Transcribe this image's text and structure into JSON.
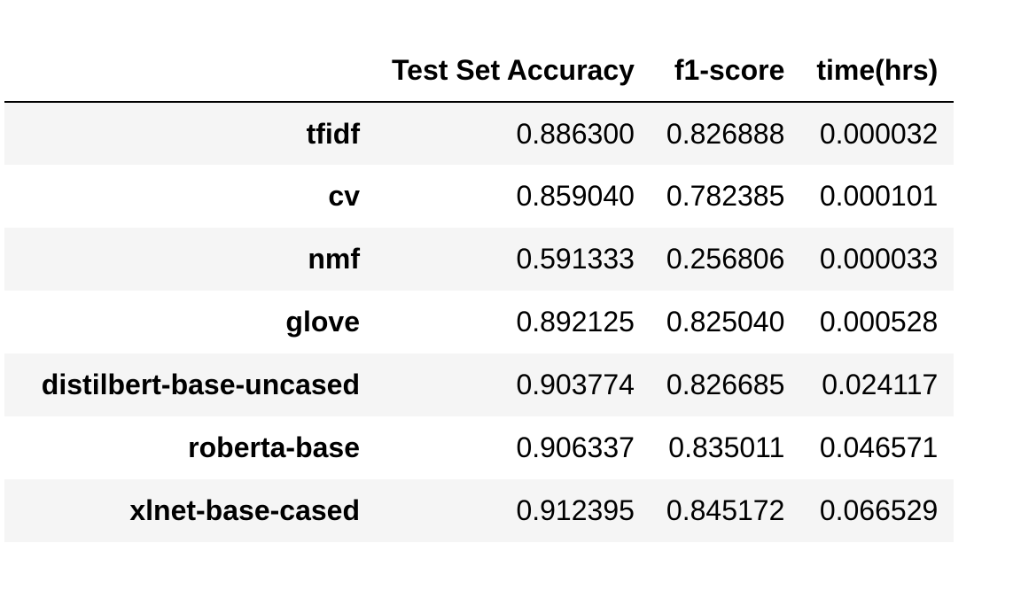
{
  "chart_data": {
    "type": "table",
    "columns": [
      "Test Set Accuracy",
      "f1-score",
      "time(hrs)"
    ],
    "rows": [
      {
        "label": "tfidf",
        "values": [
          "0.886300",
          "0.826888",
          "0.000032"
        ]
      },
      {
        "label": "cv",
        "values": [
          "0.859040",
          "0.782385",
          "0.000101"
        ]
      },
      {
        "label": "nmf",
        "values": [
          "0.591333",
          "0.256806",
          "0.000033"
        ]
      },
      {
        "label": "glove",
        "values": [
          "0.892125",
          "0.825040",
          "0.000528"
        ]
      },
      {
        "label": "distilbert-base-uncased",
        "values": [
          "0.903774",
          "0.826685",
          "0.024117"
        ]
      },
      {
        "label": "roberta-base",
        "values": [
          "0.906337",
          "0.835011",
          "0.046571"
        ]
      },
      {
        "label": "xlnet-base-cased",
        "values": [
          "0.912395",
          "0.845172",
          "0.066529"
        ]
      }
    ]
  }
}
